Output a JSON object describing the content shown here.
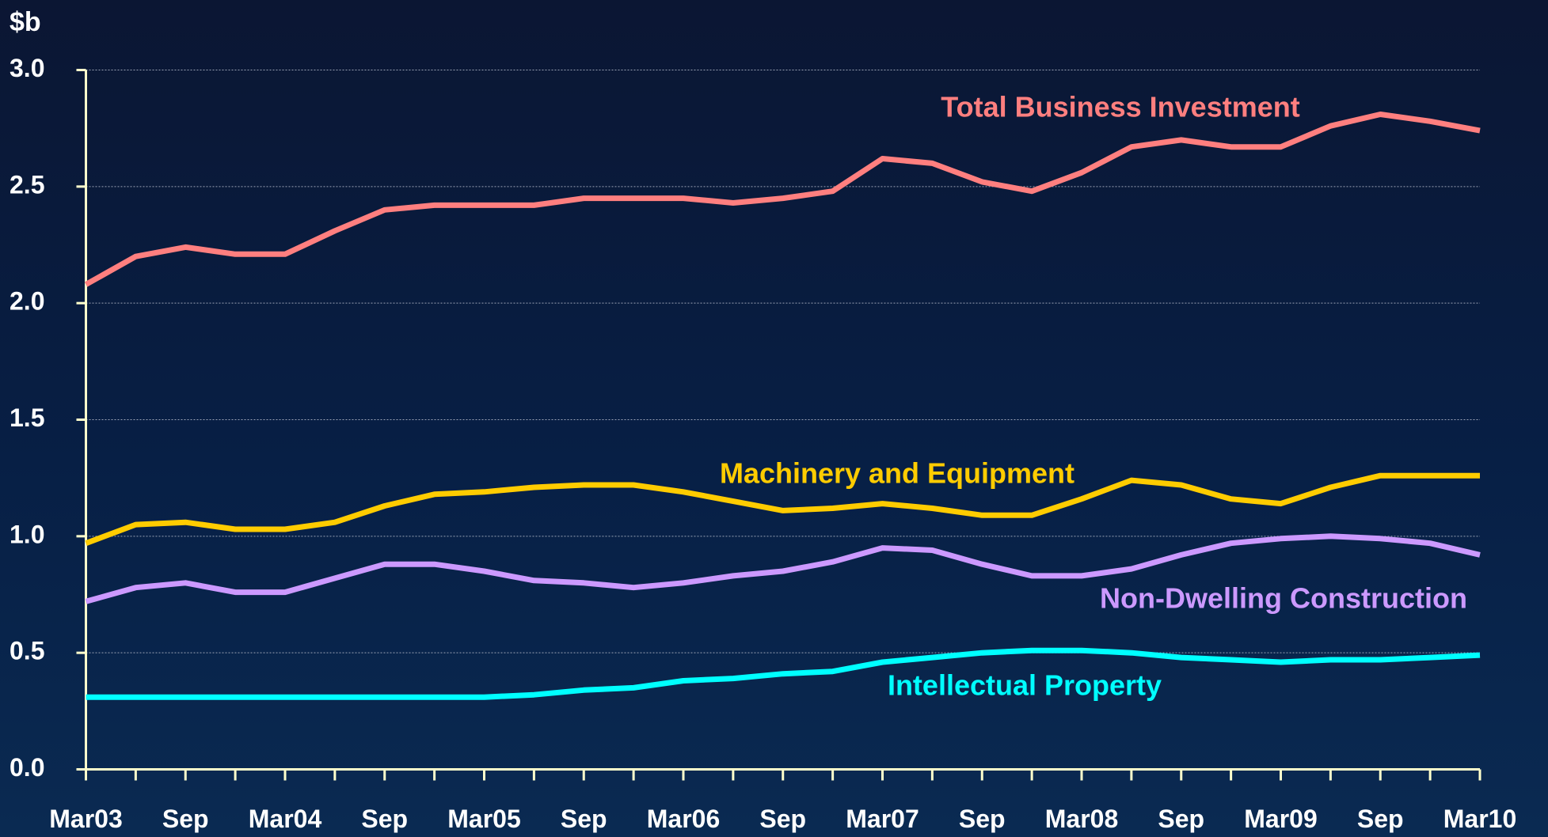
{
  "chart_data": {
    "type": "line",
    "y_label": "$b",
    "categories": [
      "Mar03",
      null,
      "Sep",
      null,
      "Mar04",
      null,
      "Sep",
      null,
      "Mar05",
      null,
      "Sep",
      null,
      "Mar06",
      null,
      "Sep",
      null,
      "Mar07",
      null,
      "Sep",
      null,
      "Mar08",
      null,
      "Sep",
      null,
      "Mar09",
      null,
      "Sep",
      null,
      "Mar10"
    ],
    "ylim": [
      0,
      3
    ],
    "yticks": [
      {
        "value": 0,
        "label": "0.0"
      },
      0.5,
      {
        "value": 1,
        "label": "1.0"
      },
      1.5,
      {
        "value": 2,
        "label": "2.0"
      },
      2.5,
      {
        "value": 3,
        "label": "3.0"
      }
    ],
    "grid": true,
    "series": [
      {
        "name": "Total Business Investment",
        "color": "#ff7f7f",
        "values": [
          2.08,
          2.2,
          2.24,
          2.21,
          2.21,
          2.31,
          2.4,
          2.42,
          2.42,
          2.42,
          2.45,
          2.45,
          2.45,
          2.43,
          2.45,
          2.48,
          2.62,
          2.6,
          2.52,
          2.48,
          2.56,
          2.67,
          2.7,
          2.67,
          2.67,
          2.76,
          2.81,
          2.78,
          2.74
        ]
      },
      {
        "name": "Machinery and Equipment",
        "color": "#ffcc00",
        "values": [
          0.97,
          1.05,
          1.06,
          1.03,
          1.03,
          1.06,
          1.13,
          1.18,
          1.19,
          1.21,
          1.22,
          1.22,
          1.19,
          1.15,
          1.11,
          1.12,
          1.14,
          1.12,
          1.09,
          1.09,
          1.16,
          1.24,
          1.22,
          1.16,
          1.14,
          1.21,
          1.26,
          1.26,
          1.26
        ]
      },
      {
        "name": "Non-Dwelling Construction",
        "color": "#cc99ff",
        "values": [
          0.72,
          0.78,
          0.8,
          0.76,
          0.76,
          0.82,
          0.88,
          0.88,
          0.85,
          0.81,
          0.8,
          0.78,
          0.8,
          0.83,
          0.85,
          0.89,
          0.95,
          0.94,
          0.88,
          0.83,
          0.83,
          0.86,
          0.92,
          0.97,
          0.99,
          1.0,
          0.99,
          0.97,
          0.92
        ]
      },
      {
        "name": "Intellectual Property",
        "color": "#00ffff",
        "values": [
          0.31,
          0.31,
          0.31,
          0.31,
          0.31,
          0.31,
          0.31,
          0.31,
          0.31,
          0.32,
          0.34,
          0.35,
          0.38,
          0.39,
          0.41,
          0.42,
          0.46,
          0.48,
          0.5,
          0.51,
          0.51,
          0.5,
          0.48,
          0.47,
          0.46,
          0.47,
          0.47,
          0.48,
          0.49
        ]
      }
    ]
  }
}
